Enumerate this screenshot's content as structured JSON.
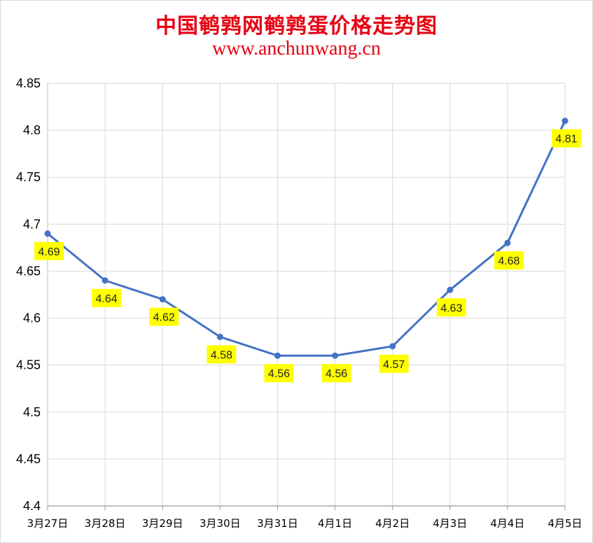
{
  "title": "中国鹌鹑网鹌鹑蛋价格走势图",
  "subtitle": "www.anchunwang.cn",
  "colors": {
    "title": "#e60012",
    "line": "#4472c4",
    "label_bg": "#ffff00",
    "grid": "#d9d9d9"
  },
  "chart_data": {
    "type": "line",
    "categories": [
      "3月27日",
      "3月28日",
      "3月29日",
      "3月30日",
      "3月31日",
      "4月1日",
      "4月2日",
      "4月3日",
      "4月4日",
      "4月5日"
    ],
    "series": [
      {
        "values": [
          4.69,
          4.64,
          4.62,
          4.58,
          4.56,
          4.56,
          4.57,
          4.63,
          4.68,
          4.81
        ]
      }
    ],
    "data_labels": [
      "4.69",
      "4.64",
      "4.62",
      "4.58",
      "4.56",
      "4.56",
      "4.57",
      "4.63",
      "4.68",
      "4.81"
    ],
    "ylim": [
      4.4,
      4.85
    ],
    "yticks": [
      "4.4",
      "4.45",
      "4.5",
      "4.55",
      "4.6",
      "4.65",
      "4.7",
      "4.75",
      "4.8",
      "4.85"
    ],
    "grid": true,
    "legend": "none"
  }
}
